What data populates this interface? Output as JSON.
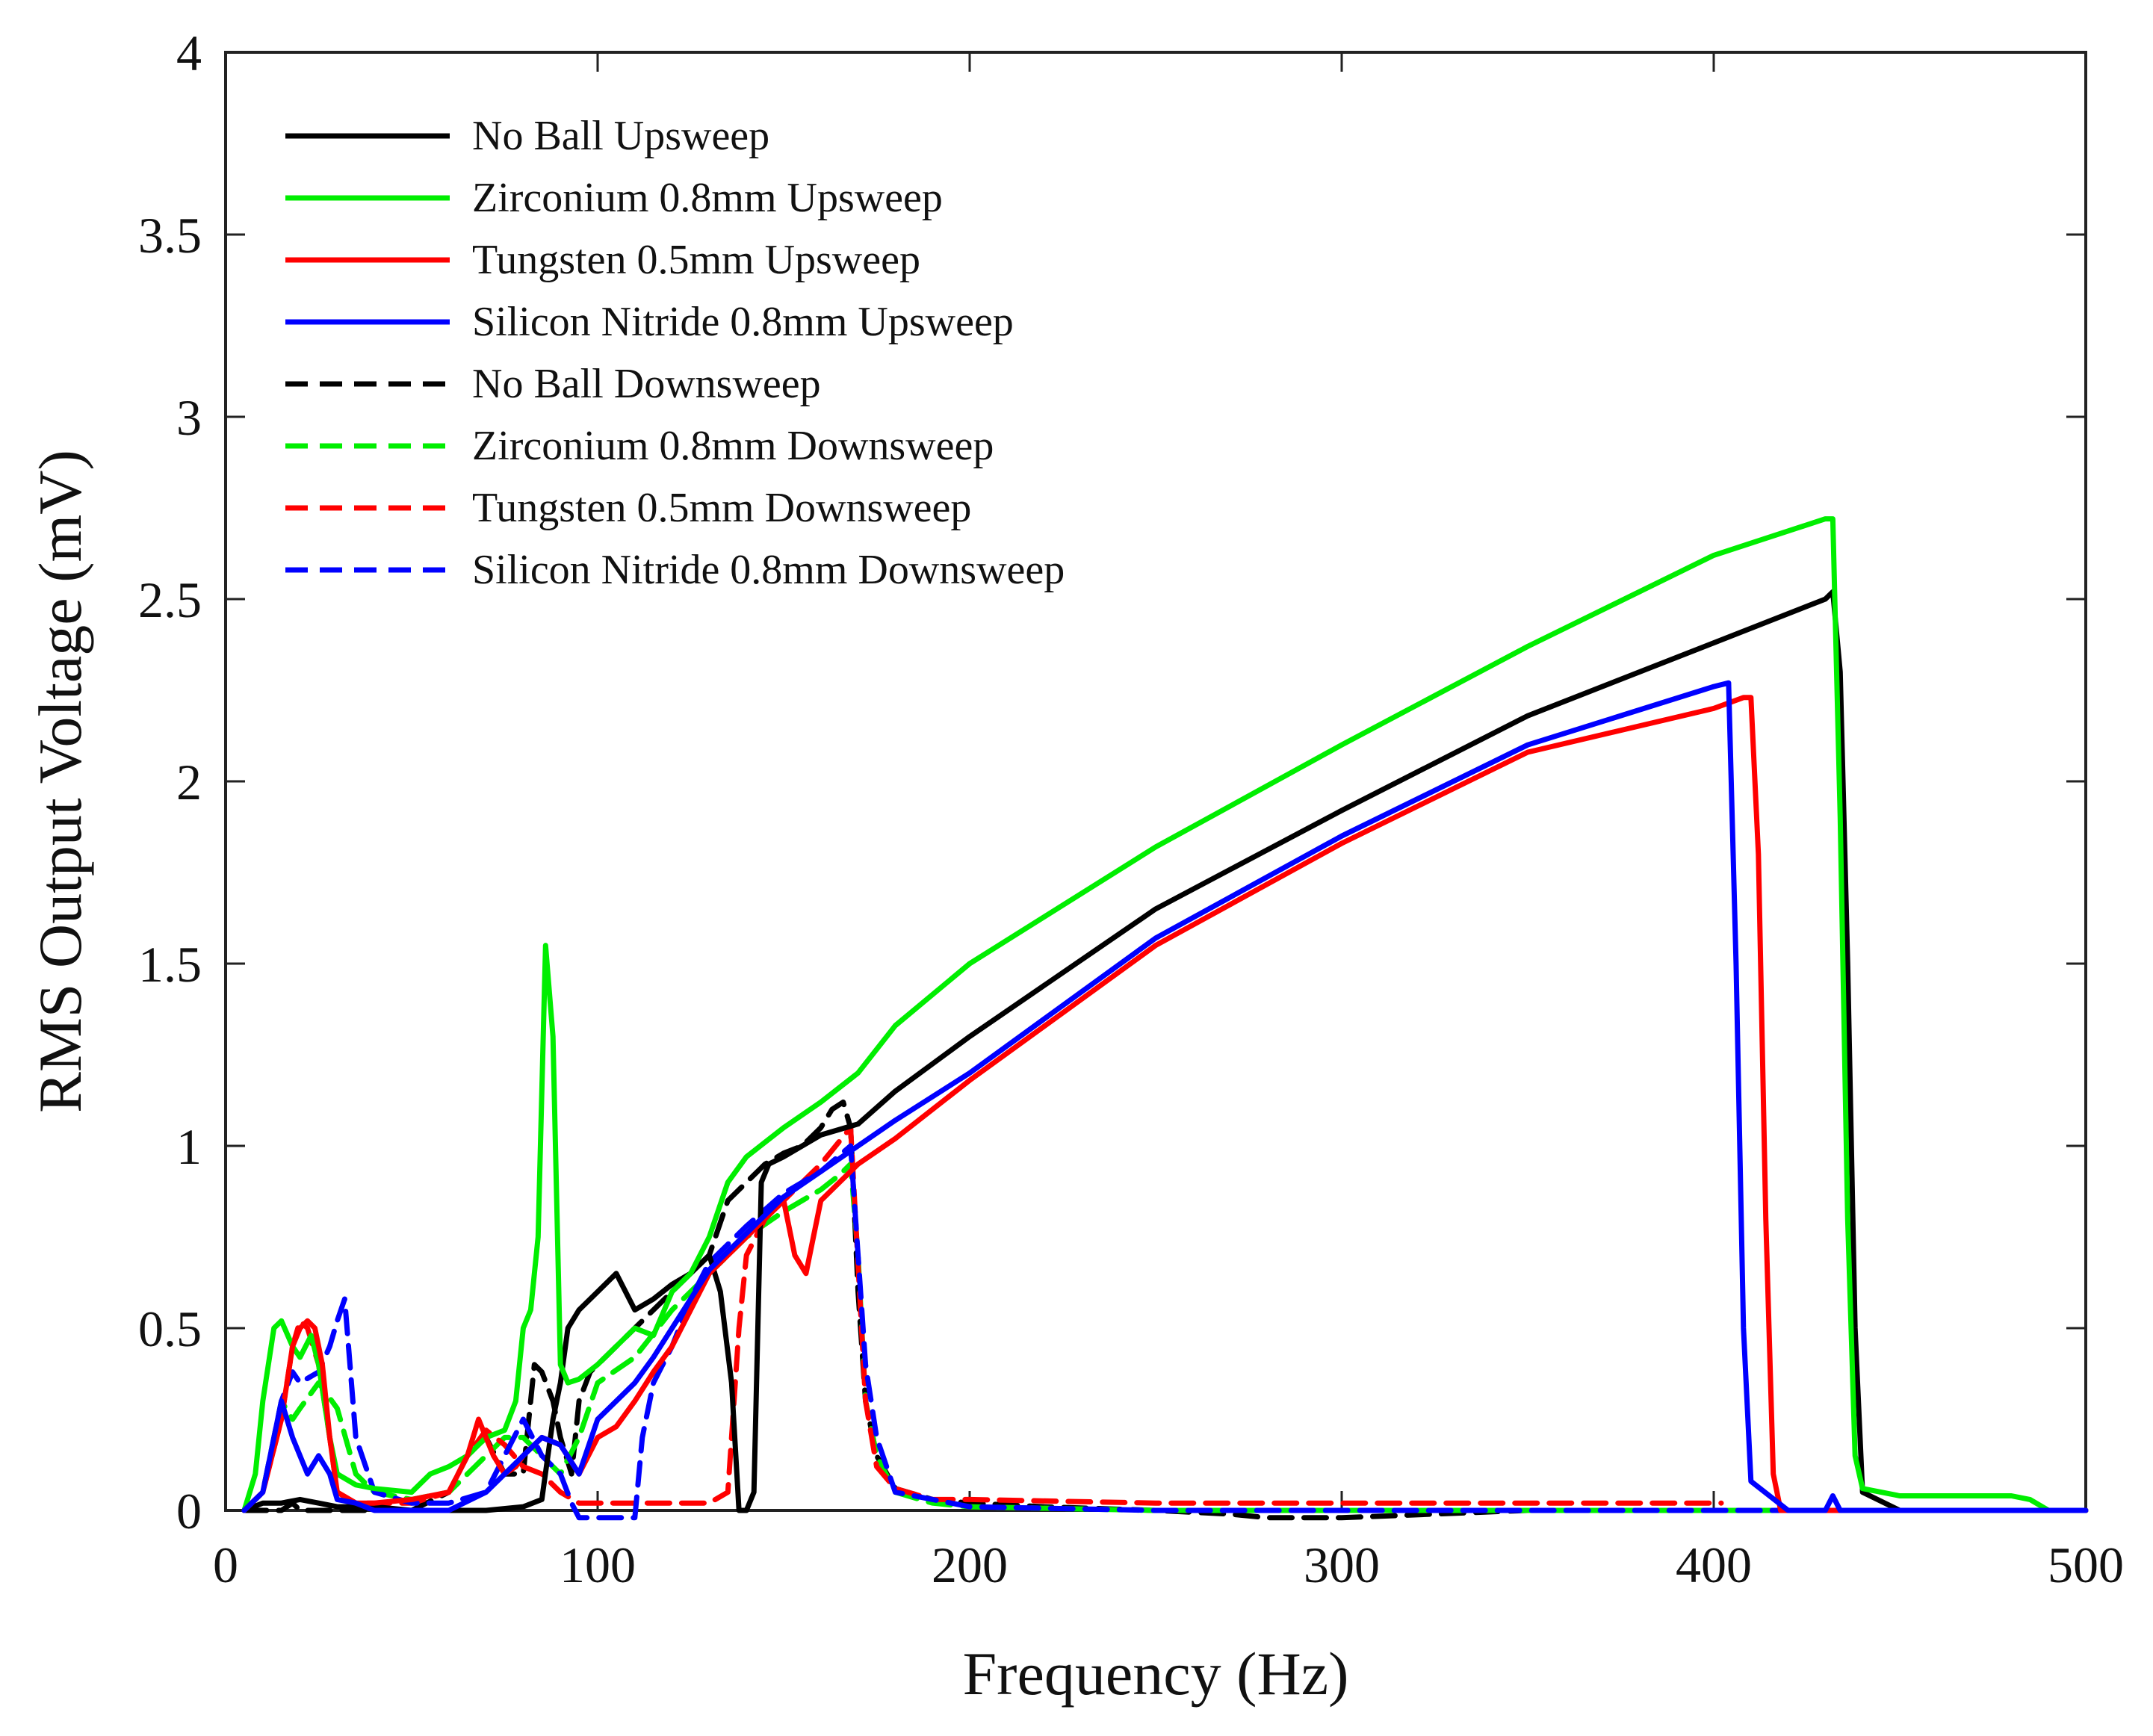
{
  "chart_data": {
    "type": "line",
    "title": "",
    "xlabel": "Frequency (Hz)",
    "ylabel": "RMS Output Voltage (mV)",
    "xlim": [
      0,
      500
    ],
    "ylim": [
      0,
      4
    ],
    "xticks": [
      0,
      100,
      200,
      300,
      400,
      500
    ],
    "yticks": [
      0,
      0.5,
      1,
      1.5,
      2,
      2.5,
      3,
      3.5,
      4
    ],
    "ytick_labels": [
      "0",
      "0.5",
      "1",
      "1.5",
      "2",
      "2.5",
      "3",
      "3.5",
      "4"
    ],
    "grid": false,
    "legend_position": "top-left",
    "series": [
      {
        "name": "No Ball Upsweep",
        "color": "#000000",
        "dash": "solid",
        "x": [
          5,
          10,
          15,
          20,
          25,
          30,
          40,
          50,
          60,
          70,
          80,
          85,
          88,
          90,
          92,
          95,
          100,
          105,
          110,
          115,
          120,
          125,
          130,
          133,
          136,
          138,
          140,
          142,
          144,
          146,
          150,
          160,
          170,
          180,
          200,
          250,
          300,
          350,
          400,
          430,
          432,
          434,
          436,
          438,
          440,
          450,
          480,
          500
        ],
        "y": [
          0.0,
          0.02,
          0.02,
          0.03,
          0.02,
          0.01,
          0.01,
          0.0,
          0.0,
          0.0,
          0.01,
          0.03,
          0.25,
          0.35,
          0.5,
          0.55,
          0.6,
          0.65,
          0.55,
          0.58,
          0.62,
          0.65,
          0.7,
          0.6,
          0.35,
          0.0,
          0.0,
          0.05,
          0.9,
          0.95,
          0.97,
          1.03,
          1.06,
          1.15,
          1.3,
          1.65,
          1.92,
          2.18,
          2.38,
          2.5,
          2.52,
          2.3,
          1.5,
          0.5,
          0.05,
          0.0,
          0.0,
          0.0
        ]
      },
      {
        "name": "Zirconium 0.8mm Upsweep",
        "color": "#00ee00",
        "dash": "solid",
        "x": [
          5,
          8,
          10,
          13,
          15,
          18,
          20,
          23,
          25,
          28,
          30,
          35,
          40,
          50,
          55,
          60,
          65,
          70,
          75,
          78,
          80,
          82,
          84,
          86,
          88,
          90,
          92,
          95,
          100,
          105,
          110,
          115,
          120,
          125,
          130,
          135,
          140,
          150,
          160,
          170,
          180,
          200,
          250,
          300,
          350,
          400,
          430,
          432,
          434,
          436,
          438,
          440,
          450,
          480,
          485,
          490,
          500
        ],
        "y": [
          0.0,
          0.1,
          0.3,
          0.5,
          0.52,
          0.45,
          0.42,
          0.48,
          0.4,
          0.2,
          0.1,
          0.07,
          0.06,
          0.05,
          0.1,
          0.12,
          0.15,
          0.2,
          0.22,
          0.3,
          0.5,
          0.55,
          0.75,
          1.55,
          1.3,
          0.4,
          0.35,
          0.36,
          0.4,
          0.45,
          0.5,
          0.48,
          0.6,
          0.65,
          0.75,
          0.9,
          0.97,
          1.05,
          1.12,
          1.2,
          1.33,
          1.5,
          1.82,
          2.1,
          2.37,
          2.62,
          2.72,
          2.72,
          1.9,
          0.8,
          0.15,
          0.06,
          0.04,
          0.04,
          0.03,
          0.0,
          0.0
        ]
      },
      {
        "name": "Tungsten 0.5mm Upsweep",
        "color": "#ff0000",
        "dash": "solid",
        "x": [
          5,
          10,
          15,
          18,
          20,
          22,
          24,
          26,
          28,
          30,
          35,
          40,
          50,
          60,
          65,
          68,
          70,
          72,
          75,
          78,
          80,
          85,
          90,
          95,
          100,
          105,
          110,
          115,
          120,
          125,
          130,
          140,
          150,
          153,
          156,
          158,
          160,
          170,
          180,
          200,
          250,
          300,
          350,
          400,
          408,
          410,
          412,
          414,
          416,
          418,
          430,
          450,
          480,
          490,
          500
        ],
        "y": [
          0.0,
          0.05,
          0.25,
          0.45,
          0.5,
          0.52,
          0.5,
          0.4,
          0.2,
          0.05,
          0.02,
          0.02,
          0.03,
          0.05,
          0.15,
          0.25,
          0.2,
          0.15,
          0.1,
          0.12,
          0.15,
          0.2,
          0.18,
          0.1,
          0.2,
          0.23,
          0.3,
          0.38,
          0.45,
          0.55,
          0.65,
          0.75,
          0.85,
          0.7,
          0.65,
          0.75,
          0.85,
          0.95,
          1.02,
          1.18,
          1.55,
          1.83,
          2.08,
          2.2,
          2.23,
          2.23,
          1.8,
          0.8,
          0.1,
          0.0,
          0.0,
          0.0,
          0.0,
          0.0,
          0.0
        ]
      },
      {
        "name": "Silicon Nitride 0.8mm Upsweep",
        "color": "#0000ff",
        "dash": "solid",
        "x": [
          5,
          10,
          13,
          15,
          18,
          20,
          22,
          25,
          28,
          30,
          35,
          40,
          50,
          60,
          70,
          75,
          80,
          85,
          90,
          95,
          100,
          105,
          110,
          115,
          120,
          125,
          130,
          140,
          150,
          160,
          170,
          180,
          200,
          250,
          300,
          350,
          400,
          404,
          406,
          408,
          410,
          420,
          430,
          432,
          434,
          440,
          450,
          480,
          500
        ],
        "y": [
          0.0,
          0.05,
          0.2,
          0.3,
          0.2,
          0.15,
          0.1,
          0.15,
          0.1,
          0.03,
          0.02,
          0.0,
          0.0,
          0.0,
          0.05,
          0.1,
          0.15,
          0.2,
          0.18,
          0.1,
          0.25,
          0.3,
          0.35,
          0.42,
          0.5,
          0.58,
          0.66,
          0.76,
          0.86,
          0.93,
          1.0,
          1.07,
          1.2,
          1.57,
          1.85,
          2.1,
          2.26,
          2.27,
          1.5,
          0.5,
          0.08,
          0.0,
          0.0,
          0.04,
          0.0,
          0.0,
          0.0,
          0.0,
          0.0
        ]
      },
      {
        "name": "No Ball Downsweep",
        "color": "#000000",
        "dash": "dashed",
        "x": [
          5,
          10,
          15,
          18,
          20,
          25,
          30,
          40,
          50,
          60,
          65,
          70,
          75,
          80,
          83,
          85,
          88,
          90,
          93,
          95,
          98,
          100,
          105,
          110,
          115,
          120,
          125,
          130,
          135,
          140,
          145,
          150,
          155,
          160,
          163,
          166,
          168,
          170,
          172,
          175,
          180,
          190,
          200,
          220,
          250,
          270,
          280,
          300,
          350,
          400,
          450,
          500
        ],
        "y": [
          0.0,
          0.0,
          0.0,
          0.02,
          0.0,
          0.0,
          0.0,
          0.0,
          0.0,
          0.05,
          0.15,
          0.2,
          0.1,
          0.1,
          0.4,
          0.38,
          0.3,
          0.2,
          0.1,
          0.3,
          0.38,
          0.4,
          0.45,
          0.5,
          0.55,
          0.6,
          0.65,
          0.7,
          0.85,
          0.9,
          0.95,
          0.98,
          1.0,
          1.05,
          1.1,
          1.12,
          1.05,
          0.6,
          0.3,
          0.15,
          0.06,
          0.03,
          0.02,
          0.01,
          0.0,
          -0.01,
          -0.02,
          -0.02,
          0.0,
          0.0,
          0.0,
          0.0
        ]
      },
      {
        "name": "Zirconium 0.8mm Downsweep",
        "color": "#00ee00",
        "dash": "dashed",
        "x": [
          5,
          10,
          15,
          18,
          20,
          25,
          30,
          35,
          40,
          50,
          60,
          70,
          75,
          80,
          85,
          90,
          95,
          100,
          110,
          120,
          130,
          140,
          150,
          155,
          160,
          165,
          168,
          170,
          172,
          175,
          180,
          190,
          200,
          250,
          300,
          350,
          400,
          450,
          500
        ],
        "y": [
          0.0,
          0.05,
          0.3,
          0.25,
          0.28,
          0.35,
          0.28,
          0.1,
          0.05,
          0.03,
          0.05,
          0.15,
          0.2,
          0.2,
          0.15,
          0.1,
          0.2,
          0.35,
          0.42,
          0.55,
          0.65,
          0.75,
          0.82,
          0.85,
          0.88,
          0.92,
          0.95,
          0.7,
          0.3,
          0.15,
          0.05,
          0.02,
          0.01,
          0.0,
          0.0,
          0.0,
          0.0,
          0.0,
          0.0
        ]
      },
      {
        "name": "Tungsten 0.5mm Downsweep",
        "color": "#ff0000",
        "dash": "dashed",
        "x": [
          5,
          10,
          15,
          18,
          20,
          22,
          25,
          28,
          30,
          35,
          40,
          50,
          60,
          65,
          70,
          75,
          80,
          85,
          90,
          95,
          100,
          110,
          120,
          130,
          135,
          138,
          140,
          145,
          150,
          160,
          168,
          172,
          175,
          180,
          190,
          200,
          250,
          300,
          350,
          400,
          402
        ],
        "y": [
          0.0,
          0.05,
          0.25,
          0.45,
          0.52,
          0.5,
          0.4,
          0.2,
          0.05,
          0.02,
          0.02,
          0.02,
          0.05,
          0.15,
          0.22,
          0.18,
          0.12,
          0.1,
          0.05,
          0.02,
          0.02,
          0.02,
          0.02,
          0.02,
          0.05,
          0.5,
          0.7,
          0.8,
          0.85,
          0.95,
          1.05,
          0.3,
          0.12,
          0.06,
          0.03,
          0.03,
          0.02,
          0.02,
          0.02,
          0.02,
          0.02
        ]
      },
      {
        "name": "Silicon Nitride 0.8mm Downsweep",
        "color": "#0000ff",
        "dash": "dashed",
        "x": [
          5,
          10,
          15,
          18,
          20,
          25,
          28,
          30,
          32,
          35,
          40,
          50,
          60,
          70,
          75,
          80,
          85,
          90,
          93,
          95,
          100,
          105,
          110,
          112,
          115,
          120,
          125,
          130,
          140,
          150,
          160,
          168,
          172,
          175,
          180,
          200,
          250,
          300,
          350,
          400,
          450,
          500
        ],
        "y": [
          0.0,
          0.05,
          0.3,
          0.38,
          0.35,
          0.38,
          0.45,
          0.52,
          0.58,
          0.2,
          0.05,
          0.02,
          0.02,
          0.05,
          0.15,
          0.25,
          0.15,
          0.1,
          0.02,
          -0.02,
          -0.02,
          -0.02,
          -0.02,
          0.2,
          0.35,
          0.45,
          0.58,
          0.68,
          0.78,
          0.87,
          0.93,
          1.0,
          0.4,
          0.2,
          0.05,
          0.01,
          0.0,
          0.0,
          0.0,
          0.0,
          0.0,
          0.0
        ]
      }
    ]
  }
}
